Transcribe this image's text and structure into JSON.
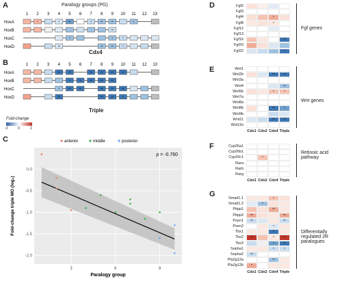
{
  "panels": {
    "A": {
      "letter": "A",
      "header": "Paralogy groups (PG)",
      "caption": "Cdx4"
    },
    "B": {
      "letter": "B",
      "caption": "Triple"
    },
    "C": {
      "letter": "C"
    },
    "D": {
      "letter": "D",
      "group": "Fgf genes"
    },
    "E": {
      "letter": "E",
      "group": "Wnt genes"
    },
    "F": {
      "letter": "F",
      "group": "Retinoic acid pathway"
    },
    "G": {
      "letter": "G",
      "group": "Differentially regulated 2R paralogues"
    }
  },
  "pg_numbers": [
    "1",
    "2",
    "3",
    "4",
    "5",
    "6",
    "7",
    "8",
    "9",
    "10",
    "11",
    "12",
    "13"
  ],
  "hox_rows": [
    "HoxA",
    "HoxB",
    "HoxC",
    "HoxD"
  ],
  "hoxA_rows_A": [
    [
      "#f4b8a4",
      "#f4b8a4",
      "#c8dcef",
      "#d6e5f2",
      "#6e9fcc",
      "#ffffff",
      "#c8dcef",
      "#9fc2e0",
      "#9fc2e0",
      "#c8dcef",
      "#9fc2e0",
      "",
      "#bfbfbf"
    ],
    [
      "#f4b8a4",
      "#f4b8a4",
      "#f0f0f0",
      "#dbe7f3",
      "#9fc2e0",
      "#cfe0ef",
      "#9fc2e0",
      "#9fc2e0",
      "#cfe0ef",
      "",
      "",
      "",
      ""
    ],
    [
      "",
      "",
      "",
      "#dbe7f3",
      "#9fc2e0",
      "#9fc2e0",
      "",
      "#9fc2e0",
      "#9fc2e0",
      "#c8dcef",
      "#d6e5f2",
      "#dbe7f3",
      "#dbe7f3"
    ],
    [
      "#f3a38d",
      "",
      "#c8dcef",
      "#d6e5f2",
      "",
      "",
      "",
      "#9fc2e0",
      "#9fc2e0",
      "#c8dcef",
      "#d6e5f2",
      "#c8dcef",
      "#bfbfbf"
    ]
  ],
  "hoxA_stars_A": [
    [
      "",
      "*",
      "",
      "*",
      "**",
      "",
      "*",
      "**",
      "**",
      "",
      "*",
      "",
      ""
    ],
    [
      "",
      "",
      "",
      "",
      "",
      "",
      "",
      "",
      "**",
      "",
      "",
      "",
      ""
    ],
    [
      "",
      "",
      "",
      "",
      "*",
      "",
      "",
      "",
      "*",
      "*",
      "",
      "",
      ""
    ],
    [
      "",
      "",
      "",
      "**",
      "",
      "",
      "",
      "**",
      "**",
      "*",
      "",
      "",
      ""
    ]
  ],
  "hox_rows_B": [
    [
      "#f4b8a4",
      "#f4b8a4",
      "#c8dcef",
      "#3e77b4",
      "#3e77b4",
      "",
      "#3e77b4",
      "#3e77b4",
      "#3e77b4",
      "#3e77b4",
      "#c8dcef",
      "",
      "#bfbfbf"
    ],
    [
      "#f4b8a4",
      "#f4b8a4",
      "#c8dcef",
      "#9fc2e0",
      "#3e77b4",
      "#3e77b4",
      "#3e77b4",
      "#3e77b4",
      "#3e77b4",
      "",
      "",
      "",
      ""
    ],
    [
      "",
      "",
      "",
      "#9fc2e0",
      "#3e77b4",
      "#3e77b4",
      "",
      "#3e77b4",
      "#3e77b4",
      "#3e77b4",
      "#d6e5f2",
      "#9fc2e0",
      "#bfbfbf"
    ],
    [
      "#f3a38d",
      "",
      "#c8dcef",
      "#3e77b4",
      "",
      "",
      "",
      "#3e77b4",
      "#3e77b4",
      "#3e77b4",
      "#9fc2e0",
      "#9fc2e0",
      "#bfbfbf"
    ]
  ],
  "hox_stars_B": [
    [
      "",
      "",
      "",
      "**",
      "**",
      "",
      "**",
      "**",
      "**",
      "**",
      "",
      "",
      ""
    ],
    [
      "",
      "",
      "",
      "",
      "*",
      "*",
      "**",
      "**",
      "**",
      "",
      "",
      "",
      ""
    ],
    [
      "",
      "",
      "",
      "*",
      "**",
      "**",
      "",
      "**",
      "**",
      "**",
      "",
      "",
      ""
    ],
    [
      "",
      "",
      "",
      "**",
      "",
      "",
      "",
      "**",
      "**",
      "*",
      "",
      "",
      ""
    ]
  ],
  "legend": {
    "title": "Fold-change",
    "ticks": [
      "-2",
      "0",
      "2"
    ]
  },
  "scatter": {
    "legend_items": [
      "anterior",
      "middle",
      "posterior"
    ],
    "colors": [
      "#f08070",
      "#3cb44b",
      "#6aa2f0"
    ],
    "rho": "ρ = -0.760",
    "xlabel": "Paralogy group",
    "ylabel": "Fold-change triple MO (log₂)",
    "yticks": [
      "0.0",
      "-0.5",
      "-1.0",
      "-1.5",
      "-2.0"
    ],
    "xticks": [
      "3",
      "6",
      "9"
    ]
  },
  "chart_data": {
    "type": "scatter",
    "title": "",
    "xlabel": "Paralogy group",
    "ylabel": "Fold-change triple MO (log₂)",
    "ylim": [
      -2.2,
      0.5
    ],
    "xlim": [
      0.5,
      10.5
    ],
    "series": [
      {
        "name": "anterior",
        "points": [
          [
            1,
            0.35
          ],
          [
            2,
            -0.2
          ],
          [
            2,
            -0.45
          ],
          [
            3,
            -0.95
          ]
        ]
      },
      {
        "name": "middle",
        "points": [
          [
            4,
            -0.9
          ],
          [
            5,
            -0.6
          ],
          [
            6,
            -1.0
          ],
          [
            7,
            -0.8
          ],
          [
            7,
            -0.7
          ],
          [
            8,
            -1.15
          ],
          [
            9,
            -1.0
          ]
        ]
      },
      {
        "name": "posterior",
        "points": [
          [
            9,
            -1.6
          ],
          [
            10,
            -1.95
          ],
          [
            10,
            -1.3
          ]
        ]
      }
    ],
    "fit_line": [
      [
        1,
        -0.3
      ],
      [
        10,
        -1.62
      ]
    ]
  },
  "cols": [
    "Cdx1",
    "Cdx2",
    "Cdx4",
    "Triple"
  ],
  "D": {
    "genes": [
      "Fgf2",
      "Fgf3",
      "Fgf4",
      "Fgf8",
      "Fgf12",
      "Fgf13",
      "Fgf16",
      "Fgf20",
      "Fgf22"
    ],
    "cells": [
      [
        "#fbe1d8",
        "#fdf0ea",
        "#e3ecf6",
        "#ffffff"
      ],
      [
        "#ffffff",
        "#ffffff",
        "#ffffff",
        "#ffffff"
      ],
      [
        "#fbe0d6",
        "#f6c3b2",
        "#f0ab97",
        "#fbe1d8"
      ],
      [
        "#fce8e0",
        "#fbe1d8",
        "#fde7df",
        "#ffffff"
      ],
      [
        "#ffffff",
        "#ffffff",
        "#e3ecf6",
        "#ffffff"
      ],
      [
        "#ffffff",
        "#ffffff",
        "#ffffff",
        "#ffffff"
      ],
      [
        "#f6c3b2",
        "#fce8e0",
        "#ffffff",
        "#3e77b4"
      ],
      [
        "#f0ab97",
        "#fbe1d8",
        "#dbe7f3",
        "#9fc2e0"
      ],
      [
        "#dbe7f3",
        "#c8dcef",
        "#9fc2e0",
        "#3e77b4"
      ]
    ],
    "stars": [
      [
        "",
        "",
        "",
        ""
      ],
      [
        "",
        "",
        "",
        ""
      ],
      [
        "",
        "",
        "*",
        ""
      ],
      [
        "",
        "",
        "*",
        ""
      ],
      [
        "",
        "",
        "",
        ""
      ],
      [
        "",
        "",
        "",
        ""
      ],
      [
        "",
        "",
        "",
        "**"
      ],
      [
        "",
        "",
        "",
        ""
      ],
      [
        "",
        "",
        "",
        "*"
      ]
    ]
  },
  "E": {
    "genes": [
      "Wnt1",
      "Wnt2b",
      "Wnt3a",
      "Wnt4",
      "Wnt5b",
      "Wnt7a",
      "Wnt8a",
      "Wnt8b",
      "Wnt9b",
      "Wnt11",
      "Wnt11b"
    ],
    "cells": [
      [
        "#ffffff",
        "#ffffff",
        "#ffffff",
        "#ffffff"
      ],
      [
        "#fbe1d8",
        "#dbe7f3",
        "#3e77b4",
        "#3e77b4"
      ],
      [
        "#ffffff",
        "#ffffff",
        "#ffffff",
        "#ffffff"
      ],
      [
        "#ffffff",
        "#ffffff",
        "#dbe7f3",
        "#9fc2e0"
      ],
      [
        "#fbe1d8",
        "#fce8e0",
        "#f6c3b2",
        "#f6c3b2"
      ],
      [
        "#ffffff",
        "#ffffff",
        "#ffffff",
        "#ffffff"
      ],
      [
        "#ffffff",
        "#ffffff",
        "#ffffff",
        "#ffffff"
      ],
      [
        "#fbe1d8",
        "#ffffff",
        "#3e77b4",
        "#6e9fcc"
      ],
      [
        "#ffffff",
        "#ffffff",
        "#c8dcef",
        "#dbe7f3"
      ],
      [
        "#dbe7f3",
        "#c8dcef",
        "#3e77b4",
        "#3e77b4"
      ],
      [
        "#ffffff",
        "#ffffff",
        "#ffffff",
        "#ffffff"
      ]
    ],
    "stars": [
      [
        "",
        "",
        "",
        ""
      ],
      [
        "",
        "",
        "**",
        "**"
      ],
      [
        "",
        "",
        "",
        ""
      ],
      [
        "",
        "",
        "",
        "**"
      ],
      [
        "",
        "",
        "*",
        "*"
      ],
      [
        "",
        "",
        "",
        ""
      ],
      [
        "",
        "",
        "",
        ""
      ],
      [
        "",
        "",
        "**",
        "*"
      ],
      [
        "",
        "",
        "",
        ""
      ],
      [
        "",
        "",
        "**",
        "**"
      ],
      [
        "",
        "",
        "",
        ""
      ]
    ]
  },
  "F": {
    "genes": [
      "Cyp26a1",
      "Cyp26b1",
      "Cyp26c1",
      "Rara",
      "Rarb",
      "Rarg"
    ],
    "cells": [
      [
        "#ffffff",
        "#ffffff",
        "#ffffff",
        "#ffffff"
      ],
      [
        "#ffffff",
        "#ffffff",
        "#ffffff",
        "#ffffff"
      ],
      [
        "#ffffff",
        "#f6c3b2",
        "#ffffff",
        "#ffffff"
      ],
      [
        "#ffffff",
        "#ffffff",
        "#ffffff",
        "#ffffff"
      ],
      [
        "#ffffff",
        "#ffffff",
        "#ffffff",
        "#ffffff"
      ],
      [
        "#ffffff",
        "#ffffff",
        "#ffffff",
        "#ffffff"
      ]
    ],
    "stars": [
      [
        "",
        "",
        "",
        ""
      ],
      [
        "",
        "",
        "",
        ""
      ],
      [
        "",
        "*",
        "",
        ""
      ],
      [
        "",
        "",
        "",
        ""
      ],
      [
        "",
        "",
        "",
        ""
      ],
      [
        "",
        "",
        "",
        ""
      ]
    ]
  },
  "G": {
    "genes": [
      "Smad1.1",
      "Smad1.2",
      "Pitpp1",
      "Pitpp2",
      "Psen1",
      "Psen2",
      "Tbx1",
      "Tbx2",
      "Tbx3",
      "Sepha1",
      "Sepha2",
      "Pla2g12a",
      "Pla2g12b"
    ],
    "cells": [
      [
        "#fce8e0",
        "#fde7df",
        "#f6c3b2",
        "#fbe1d8"
      ],
      [
        "#e3ecf6",
        "#9fc2e0",
        "#fbe1d8",
        "#fce8e0"
      ],
      [
        "#f6c3b2",
        "#fbe1d8",
        "#f0ab97",
        "#fce8e0"
      ],
      [
        "#f0ab97",
        "#fbe1d8",
        "#fce8e0",
        "#f0ab97"
      ],
      [
        "#c8dcef",
        "#dbe7f3",
        "#fce8e0",
        "#c8dcef"
      ],
      [
        "#ffffff",
        "#fde7df",
        "#dbe7f3",
        "#fce8e0"
      ],
      [
        "#fce8e0",
        "#fce8e0",
        "#3e77b4",
        "#fce8e0"
      ],
      [
        "#c0342b",
        "#f6c3b2",
        "#fce8e0",
        "#c0342b"
      ],
      [
        "#c8dcef",
        "#f0f0f0",
        "#6e9fcc",
        "#3e77b4"
      ],
      [
        "#fce8e0",
        "#fde7df",
        "#c8dcef",
        "#c8dcef"
      ],
      [
        "#c8dcef",
        "#ffffff",
        "#ffffff",
        "#ffffff"
      ],
      [
        "#ffffff",
        "#ffffff",
        "#9fc2e0",
        "#fce8e0"
      ],
      [
        "#f0ab97",
        "#ffffff",
        "#fce8e0",
        "#fce8e0"
      ]
    ],
    "stars": [
      [
        "",
        "",
        "*",
        ""
      ],
      [
        "",
        "*",
        "",
        ""
      ],
      [
        "",
        "",
        "**",
        ""
      ],
      [
        "**",
        "",
        "",
        "**"
      ],
      [
        "**",
        "",
        "",
        "**"
      ],
      [
        "",
        "",
        "*",
        ""
      ],
      [
        "",
        "",
        "*",
        ""
      ],
      [
        "**",
        "",
        "*",
        "**"
      ],
      [
        "",
        "",
        "*",
        "**"
      ],
      [
        "",
        "",
        "*",
        "*"
      ],
      [
        "**",
        "",
        "",
        ""
      ],
      [
        "",
        "",
        "**",
        ""
      ],
      [
        "*",
        "",
        "",
        ""
      ]
    ]
  }
}
